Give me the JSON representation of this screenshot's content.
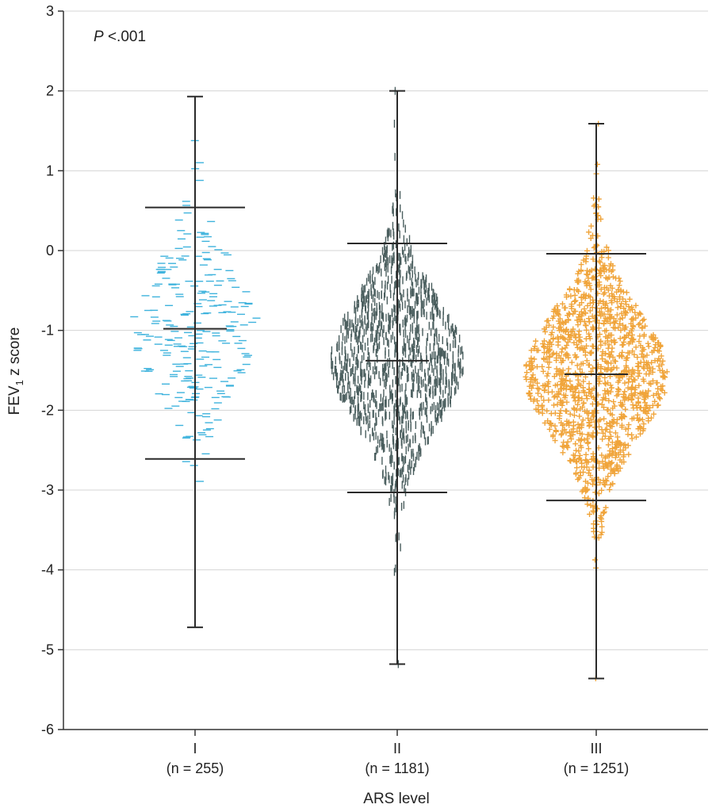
{
  "chart_data": {
    "type": "scatter",
    "subtype": "dot-strip plot with range whiskers",
    "annotation": {
      "italic": "P",
      "text": " <.001"
    },
    "ylabel": {
      "main": "FEV",
      "sub": "1",
      "suffix": " z score"
    },
    "xlabel": "ARS level",
    "ylim": [
      -6,
      3
    ],
    "yticks": [
      "3",
      "2",
      "1",
      "0",
      "-1",
      "-2",
      "-3",
      "-4",
      "-5",
      "-6"
    ],
    "grid": true,
    "groups": [
      {
        "label": "I",
        "n_label": "(n = 255)",
        "n": 255,
        "color": "#3fb3dd",
        "marker": "horizontal-dash",
        "min": -4.72,
        "max": 1.93,
        "mean_plus_2sd": 0.54,
        "mean": -0.98,
        "mean_minus_2sd": -2.61
      },
      {
        "label": "II",
        "n_label": "(n = 1181)",
        "n": 1181,
        "color": "#4a5e5e",
        "marker": "vertical-dash",
        "min": -5.18,
        "max": 2.0,
        "mean_plus_2sd": 0.09,
        "mean": -1.38,
        "mean_minus_2sd": -3.03
      },
      {
        "label": "III",
        "n_label": "(n = 1251)",
        "n": 1251,
        "color": "#f0a43a",
        "marker": "plus",
        "min": -5.36,
        "max": 1.59,
        "mean_plus_2sd": -0.04,
        "mean": -1.55,
        "mean_minus_2sd": -3.13
      }
    ]
  }
}
